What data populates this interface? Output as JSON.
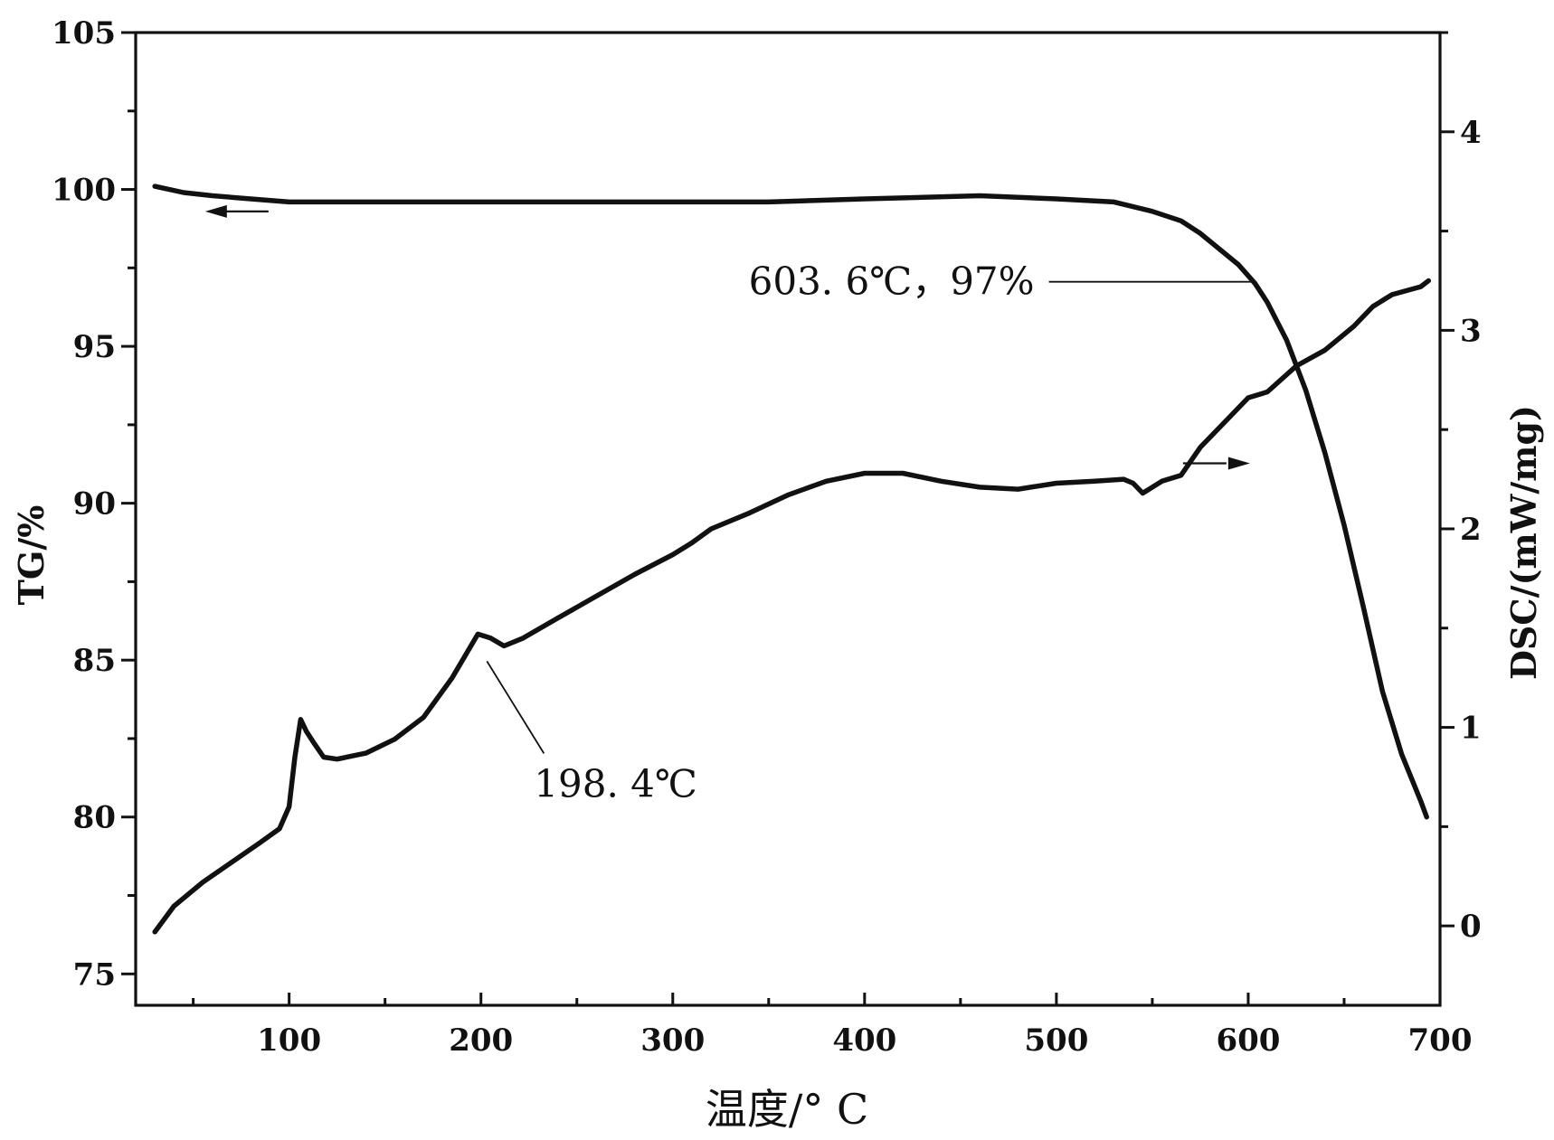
{
  "chart_data": {
    "type": "line",
    "xlabel": "温度/° C",
    "ylabel_left": "TG/%",
    "ylabel_right": "DSC/(mW/mg)",
    "x_range": [
      20,
      700
    ],
    "y_left_range": [
      74,
      105
    ],
    "y_right_range": [
      -0.4,
      4.5
    ],
    "x_ticks": [
      100,
      200,
      300,
      400,
      500,
      600,
      700
    ],
    "y_left_ticks": [
      75,
      80,
      85,
      90,
      95,
      100,
      105
    ],
    "y_right_ticks": [
      0,
      1,
      2,
      3,
      4
    ],
    "series": [
      {
        "name": "TG",
        "axis": "left",
        "x": [
          30,
          45,
          60,
          80,
          100,
          150,
          200,
          250,
          300,
          350,
          400,
          460,
          500,
          530,
          550,
          565,
          575,
          585,
          595,
          603.6,
          610,
          620,
          630,
          640,
          650,
          660,
          670,
          680,
          690,
          693
        ],
        "y": [
          100.1,
          99.9,
          99.8,
          99.7,
          99.6,
          99.6,
          99.6,
          99.6,
          99.6,
          99.6,
          99.7,
          99.8,
          99.7,
          99.6,
          99.3,
          99.0,
          98.6,
          98.1,
          97.6,
          97.0,
          96.4,
          95.2,
          93.6,
          91.6,
          89.3,
          86.7,
          84.0,
          82.0,
          80.5,
          80.0
        ]
      },
      {
        "name": "DSC",
        "axis": "right",
        "x": [
          30,
          40,
          55,
          70,
          85,
          95,
          100,
          103,
          106,
          109,
          113,
          118,
          125,
          140,
          155,
          170,
          185,
          198.4,
          205,
          212,
          222,
          240,
          260,
          280,
          300,
          310,
          320,
          340,
          360,
          380,
          400,
          420,
          440,
          460,
          480,
          500,
          520,
          535,
          540,
          545,
          555,
          565,
          575,
          590,
          600,
          610,
          625,
          640,
          655,
          665,
          675,
          690,
          694
        ],
        "y": [
          -0.03,
          0.1,
          0.22,
          0.32,
          0.42,
          0.49,
          0.6,
          0.85,
          1.04,
          0.98,
          0.92,
          0.85,
          0.84,
          0.87,
          0.94,
          1.05,
          1.25,
          1.47,
          1.45,
          1.41,
          1.45,
          1.55,
          1.66,
          1.77,
          1.87,
          1.93,
          2.0,
          2.08,
          2.17,
          2.24,
          2.28,
          2.28,
          2.24,
          2.21,
          2.2,
          2.23,
          2.24,
          2.25,
          2.23,
          2.18,
          2.24,
          2.27,
          2.41,
          2.56,
          2.66,
          2.69,
          2.82,
          2.9,
          3.02,
          3.12,
          3.18,
          3.22,
          3.25
        ]
      }
    ],
    "annotations": [
      {
        "text": "603. 6℃，97%",
        "x": 603.6,
        "y": 97,
        "axis": "left"
      },
      {
        "text": "198. 4℃",
        "x": 198.4,
        "y": 1.47,
        "axis": "right"
      }
    ],
    "arrows": [
      {
        "series": "TG",
        "direction": "left"
      },
      {
        "series": "DSC",
        "direction": "right"
      }
    ]
  }
}
